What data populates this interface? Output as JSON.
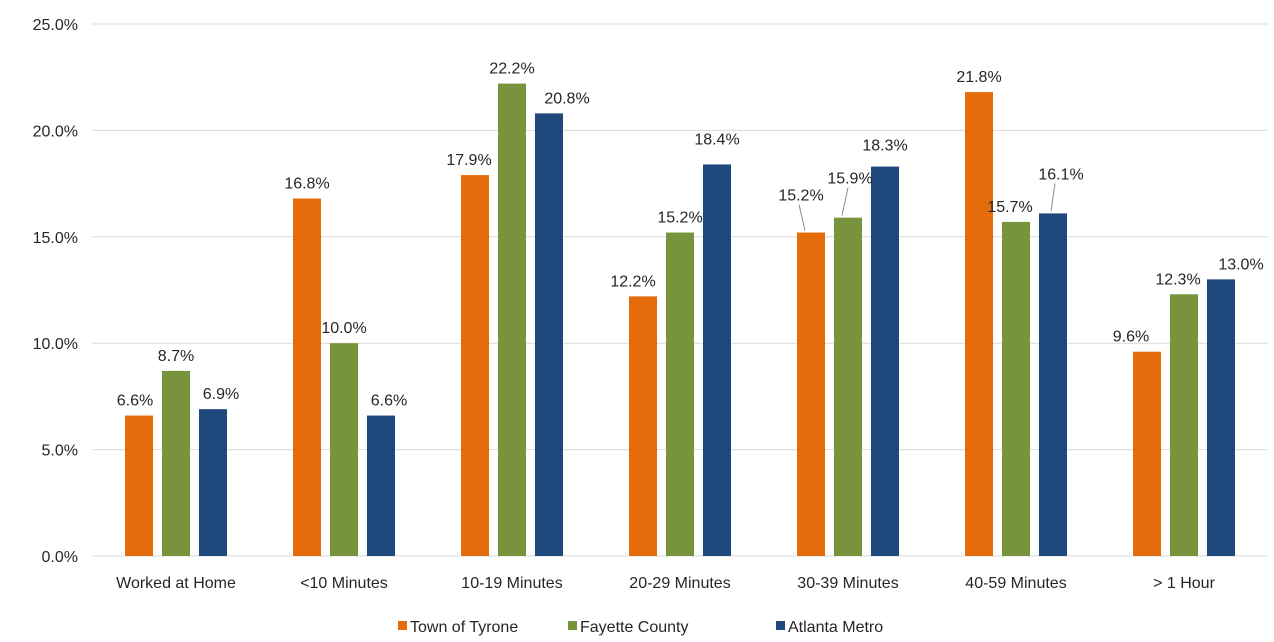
{
  "chart_data": {
    "type": "bar",
    "title": "",
    "xlabel": "",
    "ylabel": "",
    "ylim": [
      0,
      25
    ],
    "yticks": [
      "0.0%",
      "5.0%",
      "10.0%",
      "15.0%",
      "20.0%",
      "25.0%"
    ],
    "ytick_values": [
      0,
      5,
      10,
      15,
      20,
      25
    ],
    "grid": true,
    "legend_position": "bottom",
    "categories": [
      "Worked at Home",
      "<10 Minutes",
      "10-19 Minutes",
      "20-29 Minutes",
      "30-39 Minutes",
      "40-59 Minutes",
      "> 1 Hour"
    ],
    "series": [
      {
        "name": "Town of Tyrone",
        "color": "#E46C0A",
        "values": [
          6.6,
          16.8,
          17.9,
          12.2,
          15.2,
          21.8,
          9.6
        ],
        "labels": [
          "6.6%",
          "16.8%",
          "17.9%",
          "12.2%",
          "15.2%",
          "21.8%",
          "9.6%"
        ]
      },
      {
        "name": "Fayette County",
        "color": "#77933C",
        "values": [
          8.7,
          10.0,
          22.2,
          15.2,
          15.9,
          15.7,
          12.3
        ],
        "labels": [
          "8.7%",
          "10.0%",
          "22.2%",
          "15.2%",
          "15.9%",
          "15.7%",
          "12.3%"
        ]
      },
      {
        "name": "Atlanta Metro",
        "color": "#1F497D",
        "values": [
          6.9,
          6.6,
          20.8,
          18.4,
          18.3,
          16.1,
          13.0
        ],
        "labels": [
          "6.9%",
          "6.6%",
          "20.8%",
          "18.4%",
          "18.3%",
          "16.1%",
          "13.0%"
        ]
      }
    ]
  }
}
